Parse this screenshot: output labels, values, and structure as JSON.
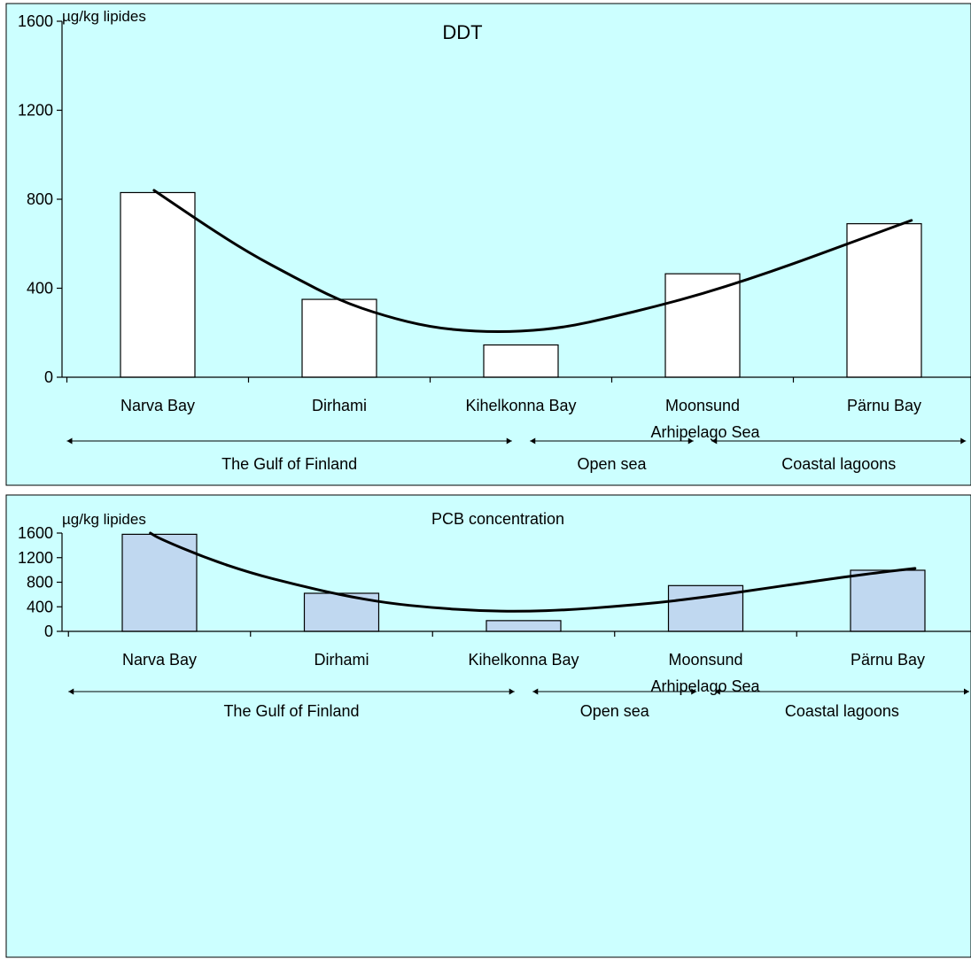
{
  "chart_data": [
    {
      "type": "bar",
      "title": "DDT",
      "ylabel": "µg/kg lipides",
      "ylim": [
        0,
        1600
      ],
      "yticks": [
        0,
        400,
        800,
        1200,
        1600
      ],
      "categories": [
        "Narva Bay",
        "Dirhami",
        "Kihelkonna Bay",
        "Moonsund",
        "Pärnu Bay"
      ],
      "category_extra": "Arhipelago Sea",
      "values": [
        830,
        350,
        145,
        465,
        690
      ],
      "trend": [
        {
          "x": -0.02,
          "y": 840
        },
        {
          "x": 0.25,
          "y": 690
        },
        {
          "x": 0.5,
          "y": 560
        },
        {
          "x": 0.75,
          "y": 450
        },
        {
          "x": 1.0,
          "y": 345
        },
        {
          "x": 1.25,
          "y": 275
        },
        {
          "x": 1.5,
          "y": 225
        },
        {
          "x": 1.75,
          "y": 205
        },
        {
          "x": 2.0,
          "y": 205
        },
        {
          "x": 2.25,
          "y": 225
        },
        {
          "x": 2.5,
          "y": 270
        },
        {
          "x": 2.75,
          "y": 320
        },
        {
          "x": 3.0,
          "y": 375
        },
        {
          "x": 3.25,
          "y": 440
        },
        {
          "x": 3.5,
          "y": 510
        },
        {
          "x": 3.75,
          "y": 585
        },
        {
          "x": 4.0,
          "y": 660
        },
        {
          "x": 4.15,
          "y": 705
        }
      ],
      "regions": [
        {
          "label": "The Gulf of Finland",
          "from": -0.5,
          "to": 1.95
        },
        {
          "label": "Open sea",
          "from": 2.05,
          "to": 2.95
        },
        {
          "label": "Coastal lagoons",
          "from": 3.05,
          "to": 4.45
        }
      ],
      "colors": {
        "bg": "#ccffff",
        "bar": "#ffffff",
        "barStroke": "#000000",
        "line": "#000000"
      }
    },
    {
      "type": "bar",
      "title": "PCB concentration",
      "ylabel": "µg/kg lipides",
      "ylim": [
        0,
        1600
      ],
      "yticks": [
        0,
        400,
        800,
        1200,
        1600
      ],
      "categories": [
        "Narva Bay",
        "Dirhami",
        "Kihelkonna Bay",
        "Moonsund",
        "Pärnu Bay"
      ],
      "category_extra": "Arhipelago Sea",
      "values": [
        1580,
        620,
        175,
        745,
        995
      ],
      "trend": [
        {
          "x": -0.05,
          "y": 1600
        },
        {
          "x": 0.0,
          "y": 1510
        },
        {
          "x": 0.25,
          "y": 1200
        },
        {
          "x": 0.5,
          "y": 950
        },
        {
          "x": 0.75,
          "y": 760
        },
        {
          "x": 1.0,
          "y": 590
        },
        {
          "x": 1.25,
          "y": 460
        },
        {
          "x": 1.5,
          "y": 385
        },
        {
          "x": 1.75,
          "y": 335
        },
        {
          "x": 2.0,
          "y": 325
        },
        {
          "x": 2.25,
          "y": 350
        },
        {
          "x": 2.5,
          "y": 405
        },
        {
          "x": 2.75,
          "y": 470
        },
        {
          "x": 3.0,
          "y": 560
        },
        {
          "x": 3.25,
          "y": 665
        },
        {
          "x": 3.5,
          "y": 775
        },
        {
          "x": 3.75,
          "y": 880
        },
        {
          "x": 4.0,
          "y": 975
        },
        {
          "x": 4.15,
          "y": 1025
        }
      ],
      "regions": [
        {
          "label": "The Gulf of Finland",
          "from": -0.5,
          "to": 1.95
        },
        {
          "label": "Open sea",
          "from": 2.05,
          "to": 2.95
        },
        {
          "label": "Coastal lagoons",
          "from": 3.05,
          "to": 4.45
        }
      ],
      "colors": {
        "bg": "#ccffff",
        "bar": "#c0d8f0",
        "barStroke": "#000000",
        "line": "#000000"
      }
    }
  ]
}
